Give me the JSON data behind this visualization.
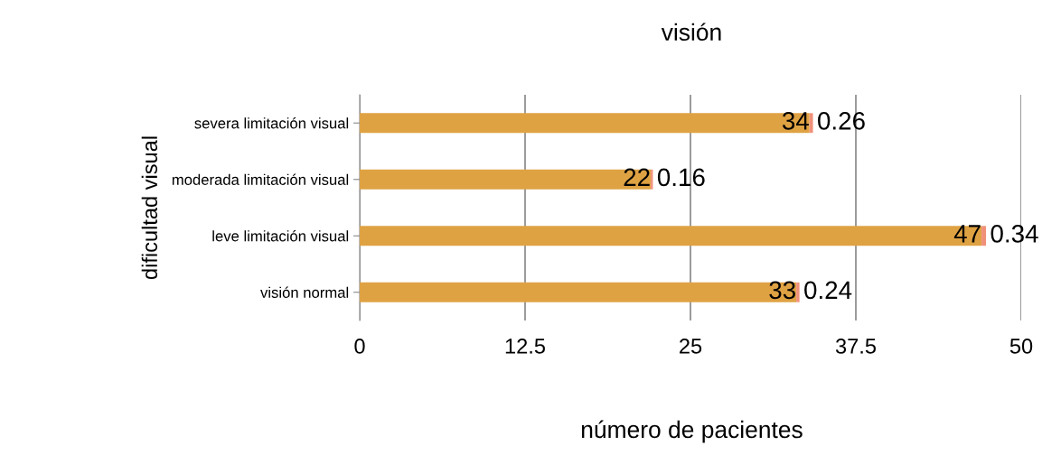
{
  "chart_data": {
    "type": "bar",
    "orientation": "horizontal",
    "stacked": true,
    "title": "visión",
    "xlabel": "número de pacientes",
    "ylabel": "dificultad visual",
    "categories": [
      "severa limitación visual",
      "moderada limitación visual",
      "leve limitación visual",
      "visión normal"
    ],
    "series": [
      {
        "color": "#dfa243",
        "values": [
          34,
          22,
          47,
          33
        ]
      },
      {
        "color": "#f0907a",
        "values": [
          0.26,
          0.16,
          0.34,
          0.24
        ]
      }
    ],
    "xlim": [
      0,
      50
    ],
    "xticks": [
      0,
      12.5,
      25,
      37.5,
      50
    ],
    "grid": "x",
    "data_labels": true,
    "legend": false
  }
}
